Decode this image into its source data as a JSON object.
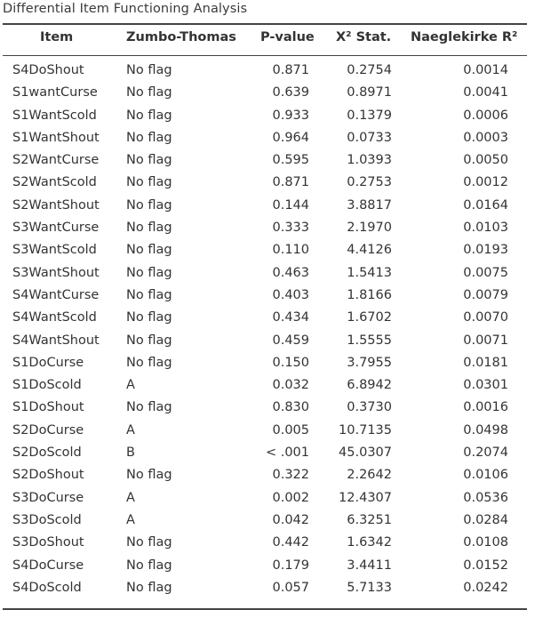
{
  "table": {
    "title": "Differential Item Functioning Analysis",
    "headers": {
      "item": "Item",
      "zumbo_thomas": "Zumbo-Thomas",
      "p_value": "P-value",
      "x2_stat": "X² Stat.",
      "naeglekirke_r2": "Naeglekirke R²"
    },
    "rows": [
      {
        "item": "S4DoShout",
        "zumbo_thomas": "No flag",
        "p_value": "0.871",
        "x2_stat": "0.2754",
        "naeglekirke_r2": "0.0014"
      },
      {
        "item": "S1wantCurse",
        "zumbo_thomas": "No flag",
        "p_value": "0.639",
        "x2_stat": "0.8971",
        "naeglekirke_r2": "0.0041"
      },
      {
        "item": "S1WantScold",
        "zumbo_thomas": "No flag",
        "p_value": "0.933",
        "x2_stat": "0.1379",
        "naeglekirke_r2": "0.0006"
      },
      {
        "item": "S1WantShout",
        "zumbo_thomas": "No flag",
        "p_value": "0.964",
        "x2_stat": "0.0733",
        "naeglekirke_r2": "0.0003"
      },
      {
        "item": "S2WantCurse",
        "zumbo_thomas": "No flag",
        "p_value": "0.595",
        "x2_stat": "1.0393",
        "naeglekirke_r2": "0.0050"
      },
      {
        "item": "S2WantScold",
        "zumbo_thomas": "No flag",
        "p_value": "0.871",
        "x2_stat": "0.2753",
        "naeglekirke_r2": "0.0012"
      },
      {
        "item": "S2WantShout",
        "zumbo_thomas": "No flag",
        "p_value": "0.144",
        "x2_stat": "3.8817",
        "naeglekirke_r2": "0.0164"
      },
      {
        "item": "S3WantCurse",
        "zumbo_thomas": "No flag",
        "p_value": "0.333",
        "x2_stat": "2.1970",
        "naeglekirke_r2": "0.0103"
      },
      {
        "item": "S3WantScold",
        "zumbo_thomas": "No flag",
        "p_value": "0.110",
        "x2_stat": "4.4126",
        "naeglekirke_r2": "0.0193"
      },
      {
        "item": "S3WantShout",
        "zumbo_thomas": "No flag",
        "p_value": "0.463",
        "x2_stat": "1.5413",
        "naeglekirke_r2": "0.0075"
      },
      {
        "item": "S4WantCurse",
        "zumbo_thomas": "No flag",
        "p_value": "0.403",
        "x2_stat": "1.8166",
        "naeglekirke_r2": "0.0079"
      },
      {
        "item": "S4WantScold",
        "zumbo_thomas": "No flag",
        "p_value": "0.434",
        "x2_stat": "1.6702",
        "naeglekirke_r2": "0.0070"
      },
      {
        "item": "S4WantShout",
        "zumbo_thomas": "No flag",
        "p_value": "0.459",
        "x2_stat": "1.5555",
        "naeglekirke_r2": "0.0071"
      },
      {
        "item": "S1DoCurse",
        "zumbo_thomas": "No flag",
        "p_value": "0.150",
        "x2_stat": "3.7955",
        "naeglekirke_r2": "0.0181"
      },
      {
        "item": "S1DoScold",
        "zumbo_thomas": "A",
        "p_value": "0.032",
        "x2_stat": "6.8942",
        "naeglekirke_r2": "0.0301"
      },
      {
        "item": "S1DoShout",
        "zumbo_thomas": "No flag",
        "p_value": "0.830",
        "x2_stat": "0.3730",
        "naeglekirke_r2": "0.0016"
      },
      {
        "item": "S2DoCurse",
        "zumbo_thomas": "A",
        "p_value": "0.005",
        "x2_stat": "10.7135",
        "naeglekirke_r2": "0.0498"
      },
      {
        "item": "S2DoScold",
        "zumbo_thomas": "B",
        "p_value": "< .001",
        "x2_stat": "45.0307",
        "naeglekirke_r2": "0.2074"
      },
      {
        "item": "S2DoShout",
        "zumbo_thomas": "No flag",
        "p_value": "0.322",
        "x2_stat": "2.2642",
        "naeglekirke_r2": "0.0106"
      },
      {
        "item": "S3DoCurse",
        "zumbo_thomas": "A",
        "p_value": "0.002",
        "x2_stat": "12.4307",
        "naeglekirke_r2": "0.0536"
      },
      {
        "item": "S3DoScold",
        "zumbo_thomas": "A",
        "p_value": "0.042",
        "x2_stat": "6.3251",
        "naeglekirke_r2": "0.0284"
      },
      {
        "item": "S3DoShout",
        "zumbo_thomas": "No flag",
        "p_value": "0.442",
        "x2_stat": "1.6342",
        "naeglekirke_r2": "0.0108"
      },
      {
        "item": "S4DoCurse",
        "zumbo_thomas": "No flag",
        "p_value": "0.179",
        "x2_stat": "3.4411",
        "naeglekirke_r2": "0.0152"
      },
      {
        "item": "S4DoScold",
        "zumbo_thomas": "No flag",
        "p_value": "0.057",
        "x2_stat": "5.7133",
        "naeglekirke_r2": "0.0242"
      }
    ]
  }
}
